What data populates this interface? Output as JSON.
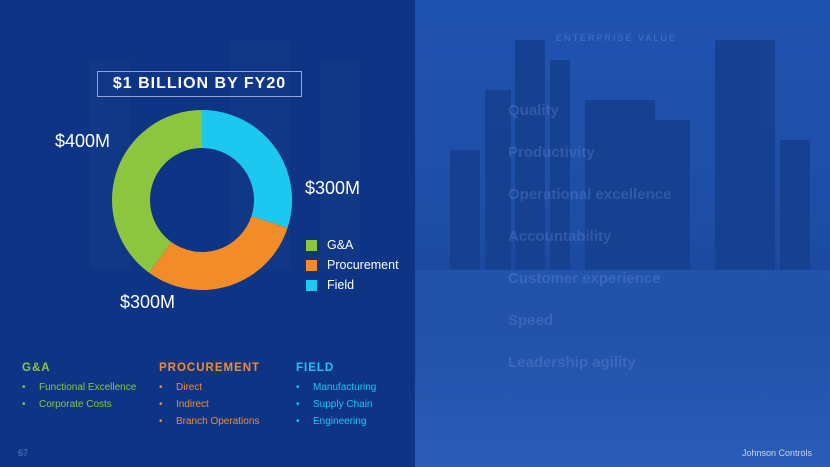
{
  "chart_data": {
    "type": "pie",
    "title": "$1 BILLION BY FY20",
    "categories": [
      "G&A",
      "Procurement",
      "Field"
    ],
    "values": [
      400,
      300,
      300
    ],
    "data_labels": [
      "$400M",
      "$300M",
      "$300M"
    ],
    "unit": "$M",
    "legend_placement": "right",
    "colors": [
      "#8cc63f",
      "#f28c28",
      "#1cc7f0"
    ]
  },
  "columns": [
    {
      "heading": "G&A",
      "color": "#8cc63f",
      "items": [
        "Functional Excellence",
        "Corporate Costs"
      ]
    },
    {
      "heading": "PROCUREMENT",
      "color": "#f28c28",
      "items": [
        "Direct",
        "Indirect",
        "Branch Operations"
      ]
    },
    {
      "heading": "FIELD",
      "color": "#1cc7f0",
      "items": [
        "Manufacturing",
        "Supply Chain",
        "Engineering"
      ]
    }
  ],
  "background_text": {
    "heading": "ENTERPRISE VALUE",
    "items": [
      "Quality",
      "Productivity",
      "Operational excellence",
      "Accountability",
      "Customer experience",
      "Speed",
      "Leadership agility"
    ]
  },
  "footer": {
    "page_number": "67",
    "brand": "Johnson Controls"
  }
}
